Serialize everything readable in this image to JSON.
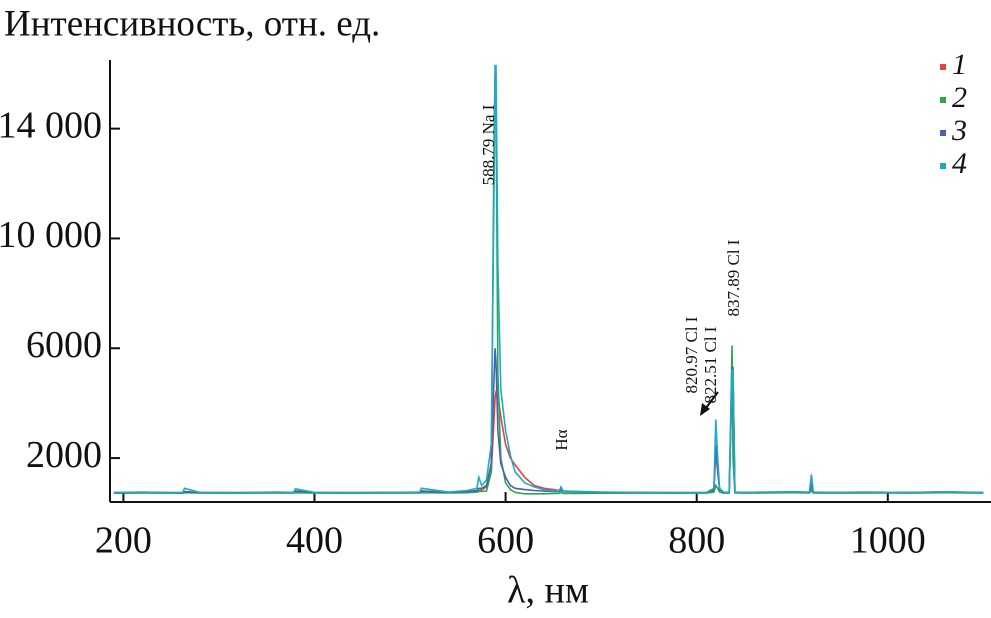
{
  "chart_data": {
    "type": "line",
    "title": "Интенсивность, отн. ед.",
    "x_label": "λ, нм",
    "xlim": [
      186,
      1108
    ],
    "ylim": [
      400,
      16500
    ],
    "xticks": [
      200,
      400,
      600,
      800,
      1000
    ],
    "yticks": [
      2000,
      6000,
      {
        "value": 10000,
        "label": "10 000"
      },
      {
        "value": 14000,
        "label": "14 000"
      }
    ],
    "legend": "top-right",
    "annotations": [
      "588.79 Na I",
      "Hα",
      "820.97 Cl I",
      "822.51 Cl I",
      "837.89 Cl I"
    ],
    "x": [
      190,
      220,
      250,
      262,
      264,
      280,
      320,
      360,
      378,
      380,
      400,
      440,
      480,
      510,
      512,
      540,
      560,
      570,
      572,
      575,
      580,
      585,
      588,
      589,
      590,
      592,
      595,
      600,
      605,
      610,
      620,
      630,
      640,
      650,
      656,
      658,
      660,
      680,
      700,
      740,
      780,
      810,
      818,
      820,
      822,
      824,
      828,
      834,
      837,
      838,
      840,
      850,
      870,
      900,
      918,
      920,
      922,
      940,
      980,
      1020,
      1060,
      1100
    ],
    "series": [
      {
        "name": "1",
        "color": "#e8413c",
        "values": [
          740,
          750,
          740,
          740,
          760,
          745,
          740,
          750,
          745,
          760,
          745,
          740,
          745,
          750,
          760,
          750,
          780,
          800,
          820,
          850,
          950,
          1500,
          3500,
          4200,
          4400,
          4300,
          3500,
          2500,
          2000,
          1750,
          1300,
          1000,
          900,
          850,
          820,
          840,
          800,
          770,
          750,
          745,
          740,
          745,
          800,
          2200,
          1500,
          850,
          750,
          745,
          5000,
          5000,
          750,
          745,
          750,
          760,
          750,
          900,
          750,
          745,
          750,
          745,
          760,
          745
        ]
      },
      {
        "name": "2",
        "color": "#2aa84a",
        "values": [
          720,
          730,
          720,
          720,
          740,
          725,
          720,
          730,
          725,
          740,
          725,
          720,
          725,
          730,
          740,
          730,
          740,
          760,
          780,
          790,
          800,
          1500,
          14000,
          16000,
          15000,
          5000,
          2000,
          1100,
          850,
          750,
          700,
          700,
          700,
          710,
          710,
          760,
          710,
          710,
          720,
          725,
          720,
          725,
          760,
          1000,
          900,
          760,
          725,
          725,
          6100,
          2000,
          730,
          725,
          730,
          740,
          730,
          800,
          730,
          725,
          730,
          725,
          740,
          725
        ]
      },
      {
        "name": "3",
        "color": "#4a5fb0",
        "values": [
          740,
          750,
          740,
          740,
          780,
          745,
          740,
          750,
          745,
          800,
          745,
          740,
          745,
          750,
          800,
          750,
          780,
          820,
          900,
          900,
          1000,
          1800,
          5000,
          6000,
          5500,
          3000,
          1800,
          1300,
          1000,
          900,
          850,
          820,
          800,
          780,
          780,
          850,
          780,
          760,
          750,
          745,
          740,
          745,
          850,
          2500,
          1600,
          850,
          750,
          745,
          5300,
          5300,
          750,
          745,
          750,
          760,
          750,
          1100,
          750,
          745,
          750,
          745,
          760,
          745
        ]
      },
      {
        "name": "4",
        "color": "#1fa9c9",
        "values": [
          750,
          760,
          740,
          740,
          900,
          750,
          740,
          760,
          750,
          880,
          750,
          740,
          750,
          760,
          900,
          760,
          820,
          900,
          1300,
          1000,
          1200,
          2500,
          12000,
          16300,
          16300,
          9000,
          4500,
          3000,
          2100,
          1500,
          1100,
          950,
          850,
          800,
          800,
          950,
          800,
          780,
          760,
          750,
          740,
          750,
          900,
          3400,
          2000,
          900,
          760,
          750,
          5200,
          5200,
          760,
          750,
          760,
          770,
          760,
          1400,
          760,
          750,
          760,
          750,
          770,
          750
        ]
      }
    ]
  }
}
